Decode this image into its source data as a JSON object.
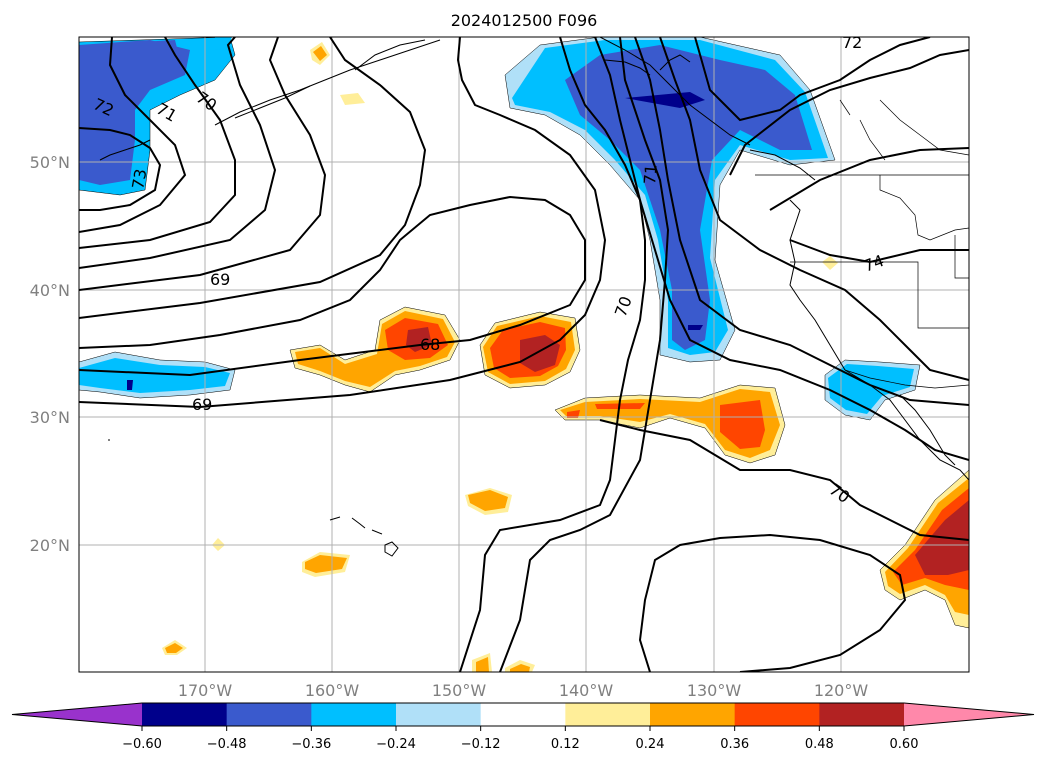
{
  "title": "2024012500 F096",
  "map": {
    "lat_labels": [
      "50°N",
      "40°N",
      "30°N",
      "20°N"
    ],
    "lon_labels": [
      "170°W",
      "160°W",
      "150°W",
      "140°W",
      "130°W",
      "120°W"
    ],
    "contour_labels": [
      "72",
      "71",
      "70",
      "73",
      "69",
      "68",
      "69",
      "70",
      "71",
      "72",
      "74",
      "70"
    ]
  },
  "colorbar": {
    "ticks": [
      "−0.60",
      "−0.48",
      "−0.36",
      "−0.24",
      "−0.12",
      "0.12",
      "0.24",
      "0.36",
      "0.48",
      "0.60"
    ],
    "colors": [
      "#9932cc",
      "#00008b",
      "#3a5acd",
      "#00bfff",
      "#b0e0f8",
      "#ffffff",
      "#ffee99",
      "#ffa500",
      "#ff4500",
      "#b22222",
      "#ff88aa"
    ]
  },
  "palette": {
    "neg_strong": "#00008b",
    "neg_mid": "#3a5acd",
    "neg_low": "#00bfff",
    "neg_weak": "#b0e0f8",
    "pos_weak": "#ffee99",
    "pos_low": "#ffa500",
    "pos_mid": "#ff4500",
    "pos_strong": "#b22222"
  }
}
